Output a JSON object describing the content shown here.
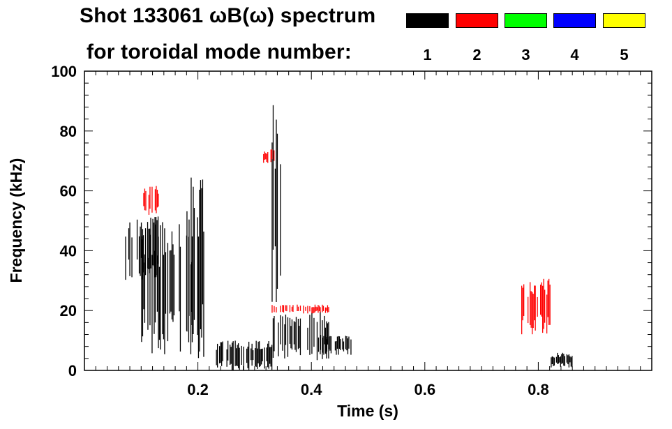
{
  "chart_data": {
    "type": "heatmap",
    "title_line1": "Shot 133061 ωB(ω) spectrum",
    "title_line2": "for toroidal mode number:",
    "xlabel": "Time (s)",
    "ylabel": "Frequency (kHz)",
    "xlim": [
      0.0,
      1.0
    ],
    "ylim": [
      0,
      100
    ],
    "x_ticks": [
      "0.2",
      "0.4",
      "0.6",
      "0.8"
    ],
    "y_ticks": [
      "0",
      "20",
      "40",
      "60",
      "80",
      "100"
    ],
    "legend": [
      {
        "mode": "1",
        "color": "#000000"
      },
      {
        "mode": "2",
        "color": "#ff0000"
      },
      {
        "mode": "3",
        "color": "#00ff00"
      },
      {
        "mode": "4",
        "color": "#0000ff"
      },
      {
        "mode": "5",
        "color": "#ffff00"
      }
    ],
    "series": [
      {
        "name": "1",
        "color": "#000000",
        "regions": [
          {
            "t0": 0.07,
            "t1": 0.13,
            "f0": 30,
            "f1": 52
          },
          {
            "t0": 0.1,
            "t1": 0.19,
            "f0": 5,
            "f1": 50
          },
          {
            "t0": 0.18,
            "t1": 0.21,
            "f0": 0,
            "f1": 65
          },
          {
            "t0": 0.23,
            "t1": 0.33,
            "f0": 0,
            "f1": 10
          },
          {
            "t0": 0.33,
            "t1": 0.345,
            "f0": 20,
            "f1": 90
          },
          {
            "t0": 0.33,
            "t1": 0.43,
            "f0": 3,
            "f1": 20
          },
          {
            "t0": 0.41,
            "t1": 0.47,
            "f0": 5,
            "f1": 12
          },
          {
            "t0": 0.82,
            "t1": 0.86,
            "f0": 1,
            "f1": 6
          }
        ]
      },
      {
        "name": "2",
        "color": "#ff0000",
        "regions": [
          {
            "t0": 0.315,
            "t1": 0.335,
            "f0": 69,
            "f1": 74
          },
          {
            "t0": 0.33,
            "t1": 0.43,
            "f0": 19,
            "f1": 22
          },
          {
            "t0": 0.77,
            "t1": 0.82,
            "f0": 12,
            "f1": 31
          },
          {
            "t0": 0.1,
            "t1": 0.13,
            "f0": 52,
            "f1": 62
          }
        ]
      },
      {
        "name": "3",
        "color": "#00ff00",
        "regions": []
      },
      {
        "name": "4",
        "color": "#0000ff",
        "regions": []
      },
      {
        "name": "5",
        "color": "#ffff00",
        "regions": []
      }
    ]
  }
}
